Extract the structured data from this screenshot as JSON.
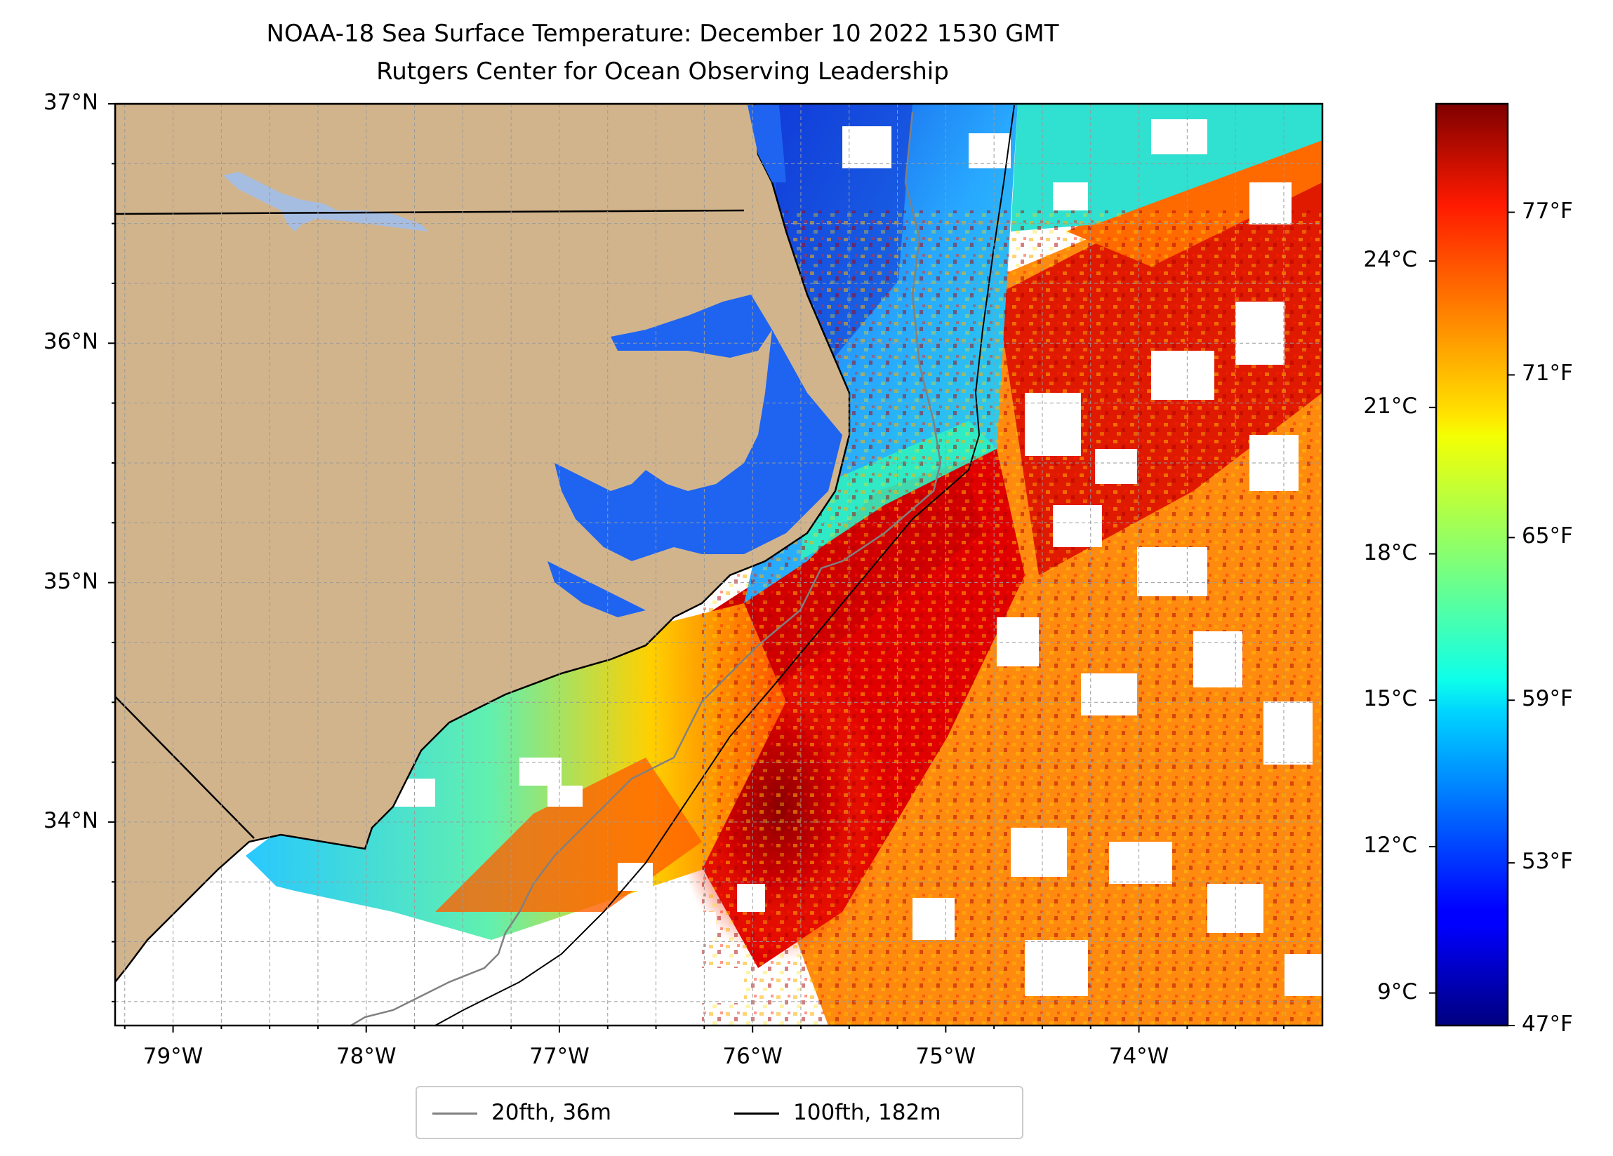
{
  "title": {
    "line1": "NOAA-18 Sea Surface Temperature: December 10 2022 1530 GMT",
    "line2": "Rutgers Center for Ocean Observing Leadership"
  },
  "map": {
    "lon_range": [
      -79.3,
      -73.05
    ],
    "lat_range": [
      33.15,
      37.0
    ],
    "land_color": "#d2b48c",
    "gridlines": true,
    "lat_ticks": [
      {
        "value": 37,
        "label": "37°N"
      },
      {
        "value": 36,
        "label": "36°N"
      },
      {
        "value": 35,
        "label": "35°N"
      },
      {
        "value": 34,
        "label": "34°N"
      }
    ],
    "lon_ticks": [
      {
        "value": -79,
        "label": "79°W"
      },
      {
        "value": -78,
        "label": "78°W"
      },
      {
        "value": -77,
        "label": "77°W"
      },
      {
        "value": -76,
        "label": "76°W"
      },
      {
        "value": -75,
        "label": "75°W"
      },
      {
        "value": -74,
        "label": "74°W"
      }
    ]
  },
  "colorbar": {
    "colormap": "jet",
    "range_f": [
      47,
      81
    ],
    "celsius_ticks": [
      {
        "value": 24,
        "label": "24°C"
      },
      {
        "value": 21,
        "label": "21°C"
      },
      {
        "value": 18,
        "label": "18°C"
      },
      {
        "value": 15,
        "label": "15°C"
      },
      {
        "value": 12,
        "label": "12°C"
      },
      {
        "value": 9,
        "label": "9°C"
      }
    ],
    "fahrenheit_ticks": [
      {
        "value": 77,
        "label": "77°F"
      },
      {
        "value": 71,
        "label": "71°F"
      },
      {
        "value": 65,
        "label": "65°F"
      },
      {
        "value": 59,
        "label": "59°F"
      },
      {
        "value": 53,
        "label": "53°F"
      },
      {
        "value": 47,
        "label": "47°F"
      }
    ]
  },
  "legend": {
    "items": [
      {
        "label": "20fth, 36m",
        "color": "#808080"
      },
      {
        "label": "100fth, 182m",
        "color": "#000000"
      }
    ]
  }
}
